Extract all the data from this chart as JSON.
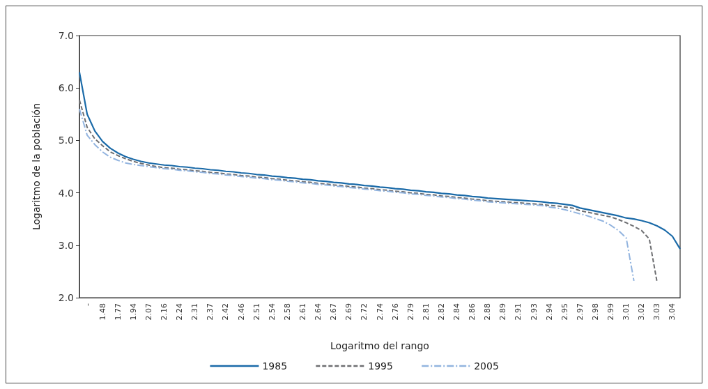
{
  "chart_data": {
    "type": "line",
    "xlabel": "Logaritmo del rango",
    "ylabel": "Logaritmo de la población",
    "categories": [
      null,
      "-",
      null,
      "1.48",
      null,
      "1.77",
      null,
      "1.94",
      null,
      "2.07",
      null,
      "2.16",
      null,
      "2.24",
      null,
      "2.31",
      null,
      "2.37",
      null,
      "2.42",
      null,
      "2.46",
      null,
      "2.51",
      null,
      "2.54",
      null,
      "2.58",
      null,
      "2.61",
      null,
      "2.64",
      null,
      "2.67",
      null,
      "2.69",
      null,
      "2.72",
      null,
      "2.74",
      null,
      "2.76",
      null,
      "2.79",
      null,
      "2.81",
      null,
      "2.82",
      null,
      "2.84",
      null,
      "2.86",
      null,
      "2.88",
      null,
      "2.89",
      null,
      "2.91",
      null,
      "2.93",
      null,
      "2.94",
      null,
      "2.95",
      null,
      "2.97",
      null,
      "2.98",
      null,
      "2.99",
      null,
      "3.01",
      null,
      "3.02",
      null,
      "3.03",
      null,
      "3.04",
      null
    ],
    "series": [
      {
        "name": "1985",
        "color": "#1a6aa8",
        "line_style": "solid",
        "values": [
          6.3,
          5.5,
          5.18,
          4.98,
          4.85,
          4.76,
          4.69,
          4.64,
          4.6,
          4.57,
          4.55,
          4.53,
          4.52,
          4.5,
          4.49,
          4.47,
          4.46,
          4.44,
          4.43,
          4.41,
          4.4,
          4.38,
          4.37,
          4.35,
          4.34,
          4.32,
          4.31,
          4.29,
          4.28,
          4.26,
          4.25,
          4.23,
          4.22,
          4.2,
          4.19,
          4.17,
          4.16,
          4.14,
          4.13,
          4.11,
          4.1,
          4.08,
          4.07,
          4.05,
          4.04,
          4.02,
          4.01,
          3.99,
          3.98,
          3.96,
          3.95,
          3.93,
          3.92,
          3.9,
          3.89,
          3.88,
          3.87,
          3.86,
          3.85,
          3.84,
          3.83,
          3.81,
          3.8,
          3.78,
          3.76,
          3.71,
          3.68,
          3.65,
          3.62,
          3.59,
          3.56,
          3.52,
          3.5,
          3.47,
          3.43,
          3.37,
          3.29,
          3.17,
          2.93
        ]
      },
      {
        "name": "1995",
        "color": "#6d6e71",
        "line_style": "dashed",
        "values": [
          5.77,
          5.25,
          5.03,
          4.9,
          4.78,
          4.71,
          4.65,
          4.6,
          4.56,
          4.53,
          4.5,
          4.48,
          4.47,
          4.45,
          4.44,
          4.42,
          4.41,
          4.39,
          4.38,
          4.36,
          4.35,
          4.33,
          4.32,
          4.3,
          4.29,
          4.27,
          4.26,
          4.24,
          4.23,
          4.21,
          4.2,
          4.18,
          4.17,
          4.15,
          4.14,
          4.12,
          4.11,
          4.09,
          4.08,
          4.06,
          4.05,
          4.03,
          4.02,
          4,
          3.99,
          3.97,
          3.96,
          3.94,
          3.93,
          3.91,
          3.9,
          3.88,
          3.87,
          3.85,
          3.84,
          3.83,
          3.82,
          3.81,
          3.8,
          3.79,
          3.78,
          3.76,
          3.75,
          3.73,
          3.71,
          3.66,
          3.63,
          3.6,
          3.57,
          3.54,
          3.49,
          3.43,
          3.36,
          3.28,
          3.12,
          2.3,
          null,
          null,
          null
        ]
      },
      {
        "name": "2005",
        "color": "#92b4df",
        "line_style": "dashdot",
        "values": [
          5.6,
          5.1,
          4.92,
          4.78,
          4.68,
          4.62,
          4.57,
          4.54,
          4.52,
          4.5,
          4.48,
          4.46,
          4.45,
          4.43,
          4.42,
          4.4,
          4.39,
          4.37,
          4.36,
          4.34,
          4.33,
          4.31,
          4.3,
          4.28,
          4.27,
          4.25,
          4.24,
          4.22,
          4.21,
          4.19,
          4.18,
          4.16,
          4.15,
          4.13,
          4.12,
          4.1,
          4.09,
          4.07,
          4.06,
          4.04,
          4.03,
          4.01,
          4,
          3.98,
          3.97,
          3.95,
          3.94,
          3.92,
          3.91,
          3.89,
          3.88,
          3.86,
          3.85,
          3.83,
          3.82,
          3.81,
          3.8,
          3.79,
          3.78,
          3.77,
          3.76,
          3.73,
          3.71,
          3.68,
          3.64,
          3.6,
          3.56,
          3.51,
          3.46,
          3.38,
          3.28,
          3.14,
          2.32,
          null,
          null,
          null,
          null,
          null,
          null
        ]
      }
    ],
    "ylim": [
      2,
      7
    ],
    "yticks": [
      {
        "value": 2,
        "label": "2.0"
      },
      {
        "value": 3,
        "label": "3.0"
      },
      {
        "value": 4,
        "label": "4.0"
      },
      {
        "value": 5,
        "label": "5.0"
      },
      {
        "value": 6,
        "label": "6.0"
      },
      {
        "value": 7,
        "label": "7.0"
      }
    ],
    "grid": false,
    "legend": "bottom",
    "marker": "none"
  }
}
